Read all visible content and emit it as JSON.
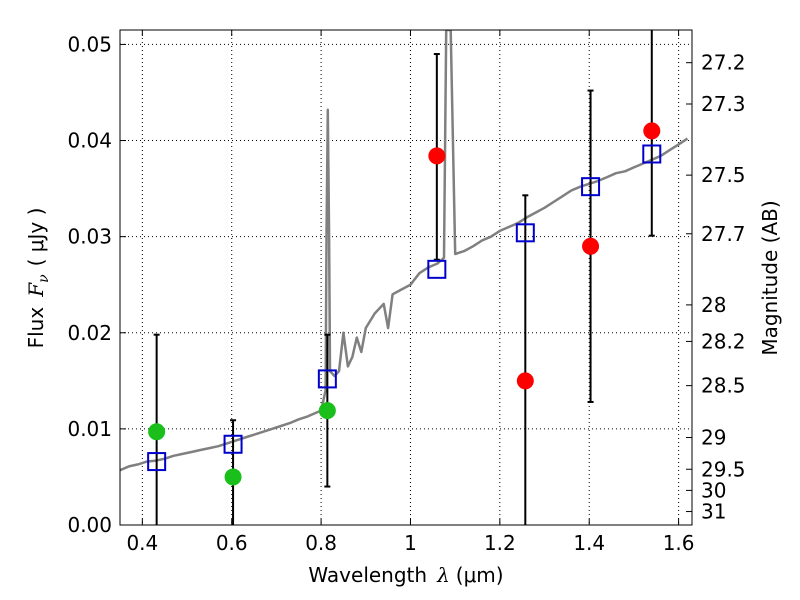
{
  "chart_data": {
    "type": "scatter",
    "xlabel_prefix": "Wavelength",
    "xlabel_symbol": "λ",
    "xlabel_unit": "(μm)",
    "ylabel_prefix": "Flux",
    "ylabel_symbol": "F",
    "ylabel_sub": "ν",
    "ylabel_unit": "( μJy )",
    "y2label": "Magnitude (AB)",
    "xlim": [
      0.35,
      1.63
    ],
    "ylim": [
      0.0,
      0.0515
    ],
    "grid": true,
    "x_ticks": [
      0.4,
      0.6,
      0.8,
      1.0,
      1.2,
      1.4,
      1.6
    ],
    "x_tick_labels": [
      "0.4",
      "0.6",
      "0.8",
      "1",
      "1.2",
      "1.4",
      "1.6"
    ],
    "y_ticks": [
      0.0,
      0.01,
      0.02,
      0.03,
      0.04,
      0.05
    ],
    "y_tick_labels": [
      "0.00",
      "0.01",
      "0.02",
      "0.03",
      "0.04",
      "0.05"
    ],
    "y2_ticks": [
      {
        "label": "27.2",
        "flux": 0.0481
      },
      {
        "label": "27.3",
        "flux": 0.0438
      },
      {
        "label": "27.5",
        "flux": 0.0364
      },
      {
        "label": "27.7",
        "flux": 0.0303
      },
      {
        "label": "28",
        "flux": 0.0229
      },
      {
        "label": "28.2",
        "flux": 0.0191
      },
      {
        "label": "28.5",
        "flux": 0.0145
      },
      {
        "label": "29",
        "flux": 0.0091
      },
      {
        "label": "29.5",
        "flux": 0.0058
      },
      {
        "label": "30",
        "flux": 0.0036
      },
      {
        "label": "31",
        "flux": 0.0014
      }
    ],
    "sed_spectrum": [
      [
        0.35,
        0.0057
      ],
      [
        0.37,
        0.0061
      ],
      [
        0.39,
        0.0063
      ],
      [
        0.41,
        0.0066
      ],
      [
        0.43,
        0.0067
      ],
      [
        0.45,
        0.0069
      ],
      [
        0.47,
        0.0072
      ],
      [
        0.49,
        0.0074
      ],
      [
        0.51,
        0.0076
      ],
      [
        0.53,
        0.0078
      ],
      [
        0.55,
        0.008
      ],
      [
        0.57,
        0.0082
      ],
      [
        0.59,
        0.0085
      ],
      [
        0.61,
        0.0088
      ],
      [
        0.63,
        0.0091
      ],
      [
        0.65,
        0.0094
      ],
      [
        0.67,
        0.0097
      ],
      [
        0.69,
        0.01
      ],
      [
        0.71,
        0.0103
      ],
      [
        0.73,
        0.0106
      ],
      [
        0.75,
        0.011
      ],
      [
        0.77,
        0.0113
      ],
      [
        0.79,
        0.0117
      ],
      [
        0.8,
        0.0119
      ],
      [
        0.81,
        0.014
      ],
      [
        0.812,
        0.03
      ],
      [
        0.815,
        0.0432
      ],
      [
        0.818,
        0.03
      ],
      [
        0.82,
        0.016
      ],
      [
        0.83,
        0.0155
      ],
      [
        0.84,
        0.016
      ],
      [
        0.85,
        0.02
      ],
      [
        0.86,
        0.0165
      ],
      [
        0.87,
        0.0175
      ],
      [
        0.88,
        0.0195
      ],
      [
        0.89,
        0.018
      ],
      [
        0.9,
        0.0205
      ],
      [
        0.92,
        0.022
      ],
      [
        0.94,
        0.023
      ],
      [
        0.95,
        0.0205
      ],
      [
        0.96,
        0.024
      ],
      [
        0.98,
        0.0245
      ],
      [
        1.0,
        0.025
      ],
      [
        1.02,
        0.0262
      ],
      [
        1.04,
        0.0268
      ],
      [
        1.06,
        0.0272
      ],
      [
        1.075,
        0.0278
      ],
      [
        1.08,
        0.0515
      ],
      [
        1.09,
        0.0515
      ],
      [
        1.1,
        0.0282
      ],
      [
        1.12,
        0.0285
      ],
      [
        1.14,
        0.029
      ],
      [
        1.16,
        0.0296
      ],
      [
        1.18,
        0.03
      ],
      [
        1.2,
        0.0306
      ],
      [
        1.22,
        0.031
      ],
      [
        1.24,
        0.0314
      ],
      [
        1.26,
        0.032
      ],
      [
        1.28,
        0.0325
      ],
      [
        1.3,
        0.033
      ],
      [
        1.32,
        0.0336
      ],
      [
        1.34,
        0.0342
      ],
      [
        1.36,
        0.0348
      ],
      [
        1.38,
        0.0352
      ],
      [
        1.4,
        0.0355
      ],
      [
        1.42,
        0.0358
      ],
      [
        1.44,
        0.0362
      ],
      [
        1.46,
        0.0366
      ],
      [
        1.48,
        0.0368
      ],
      [
        1.5,
        0.0372
      ],
      [
        1.52,
        0.0376
      ],
      [
        1.54,
        0.038
      ],
      [
        1.56,
        0.0384
      ],
      [
        1.58,
        0.039
      ],
      [
        1.6,
        0.0396
      ],
      [
        1.62,
        0.0402
      ]
    ],
    "model_points": [
      {
        "x": 0.432,
        "y": 0.0066
      },
      {
        "x": 0.603,
        "y": 0.0084
      },
      {
        "x": 0.814,
        "y": 0.0152
      },
      {
        "x": 1.059,
        "y": 0.0266
      },
      {
        "x": 1.257,
        "y": 0.0304
      },
      {
        "x": 1.403,
        "y": 0.0352
      },
      {
        "x": 1.54,
        "y": 0.0386
      }
    ],
    "detections": [
      {
        "x": 0.432,
        "y": 0.0097,
        "color": "#1bbf1b"
      },
      {
        "x": 0.603,
        "y": 0.005,
        "color": "#1bbf1b"
      },
      {
        "x": 0.814,
        "y": 0.0119,
        "color": "#1bbf1b"
      },
      {
        "x": 1.059,
        "y": 0.0384,
        "color": "#ff0000"
      },
      {
        "x": 1.257,
        "y": 0.015,
        "color": "#ff0000"
      },
      {
        "x": 1.403,
        "y": 0.029,
        "color": "#ff0000"
      },
      {
        "x": 1.54,
        "y": 0.041,
        "color": "#ff0000"
      }
    ],
    "error_bars": [
      {
        "x": 0.432,
        "low": 0.0,
        "high": 0.0198
      },
      {
        "x": 0.603,
        "low": 0.0,
        "high": 0.0109
      },
      {
        "x": 0.814,
        "low": 0.004,
        "high": 0.0198
      },
      {
        "x": 1.059,
        "low": 0.0276,
        "high": 0.049
      },
      {
        "x": 1.257,
        "low": 0.0,
        "high": 0.0343
      },
      {
        "x": 1.403,
        "low": 0.0128,
        "high": 0.0452
      },
      {
        "x": 1.54,
        "low": 0.0301,
        "high": 0.0515
      }
    ],
    "colors": {
      "spectrum": "#808080",
      "model_marker": "#0000cc",
      "error_bar": "#000000",
      "grid": "#000000"
    }
  }
}
